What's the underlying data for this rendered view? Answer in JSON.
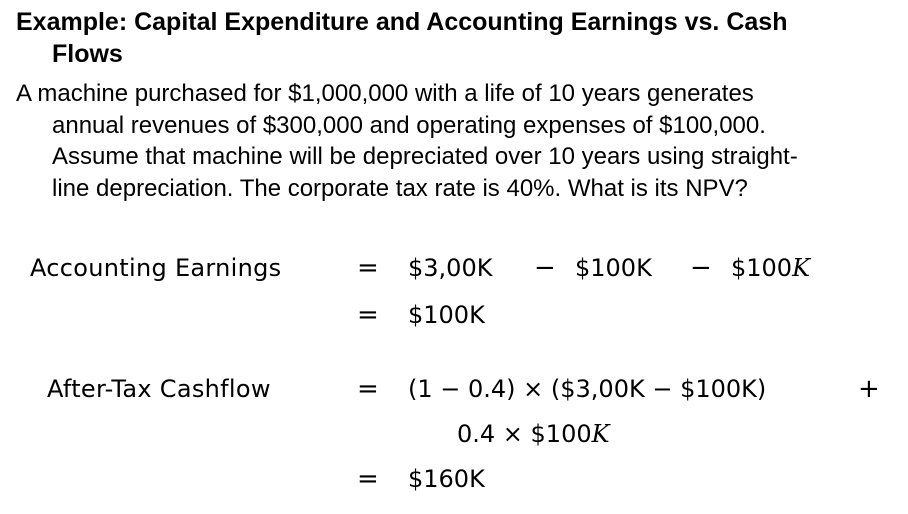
{
  "title": {
    "line1": "Example: Capital Expenditure and Accounting Earnings vs. Cash",
    "line2": "Flows"
  },
  "problem": {
    "line1": "A machine purchased for $1,000,000 with a life of 10 years generates",
    "line2": "annual revenues of $300,000 and operating expenses of $100,000.",
    "line3": "Assume that machine will be depreciated over 10 years using straight-",
    "line4": "line depreciation. The corporate tax rate is 40%.  What is its NPV?"
  },
  "accounting": {
    "label": "Accounting Earnings",
    "eq_sign": "=",
    "term1": "$3,00K",
    "minus1": "−",
    "term2": "$100K",
    "minus2": "−",
    "term3_prefix": "$100",
    "term3_unit": "K",
    "eq_sign2": "=",
    "result": "$100K"
  },
  "cashflow": {
    "label": "After-Tax Cashflow",
    "eq_sign": "=",
    "line1": "(1 − 0.4) × ($3,00K − $100K)",
    "plus": "+",
    "line2_prefix": "0.4 × $100",
    "line2_unit": "K",
    "eq_sign2": "=",
    "result": "$160K"
  }
}
